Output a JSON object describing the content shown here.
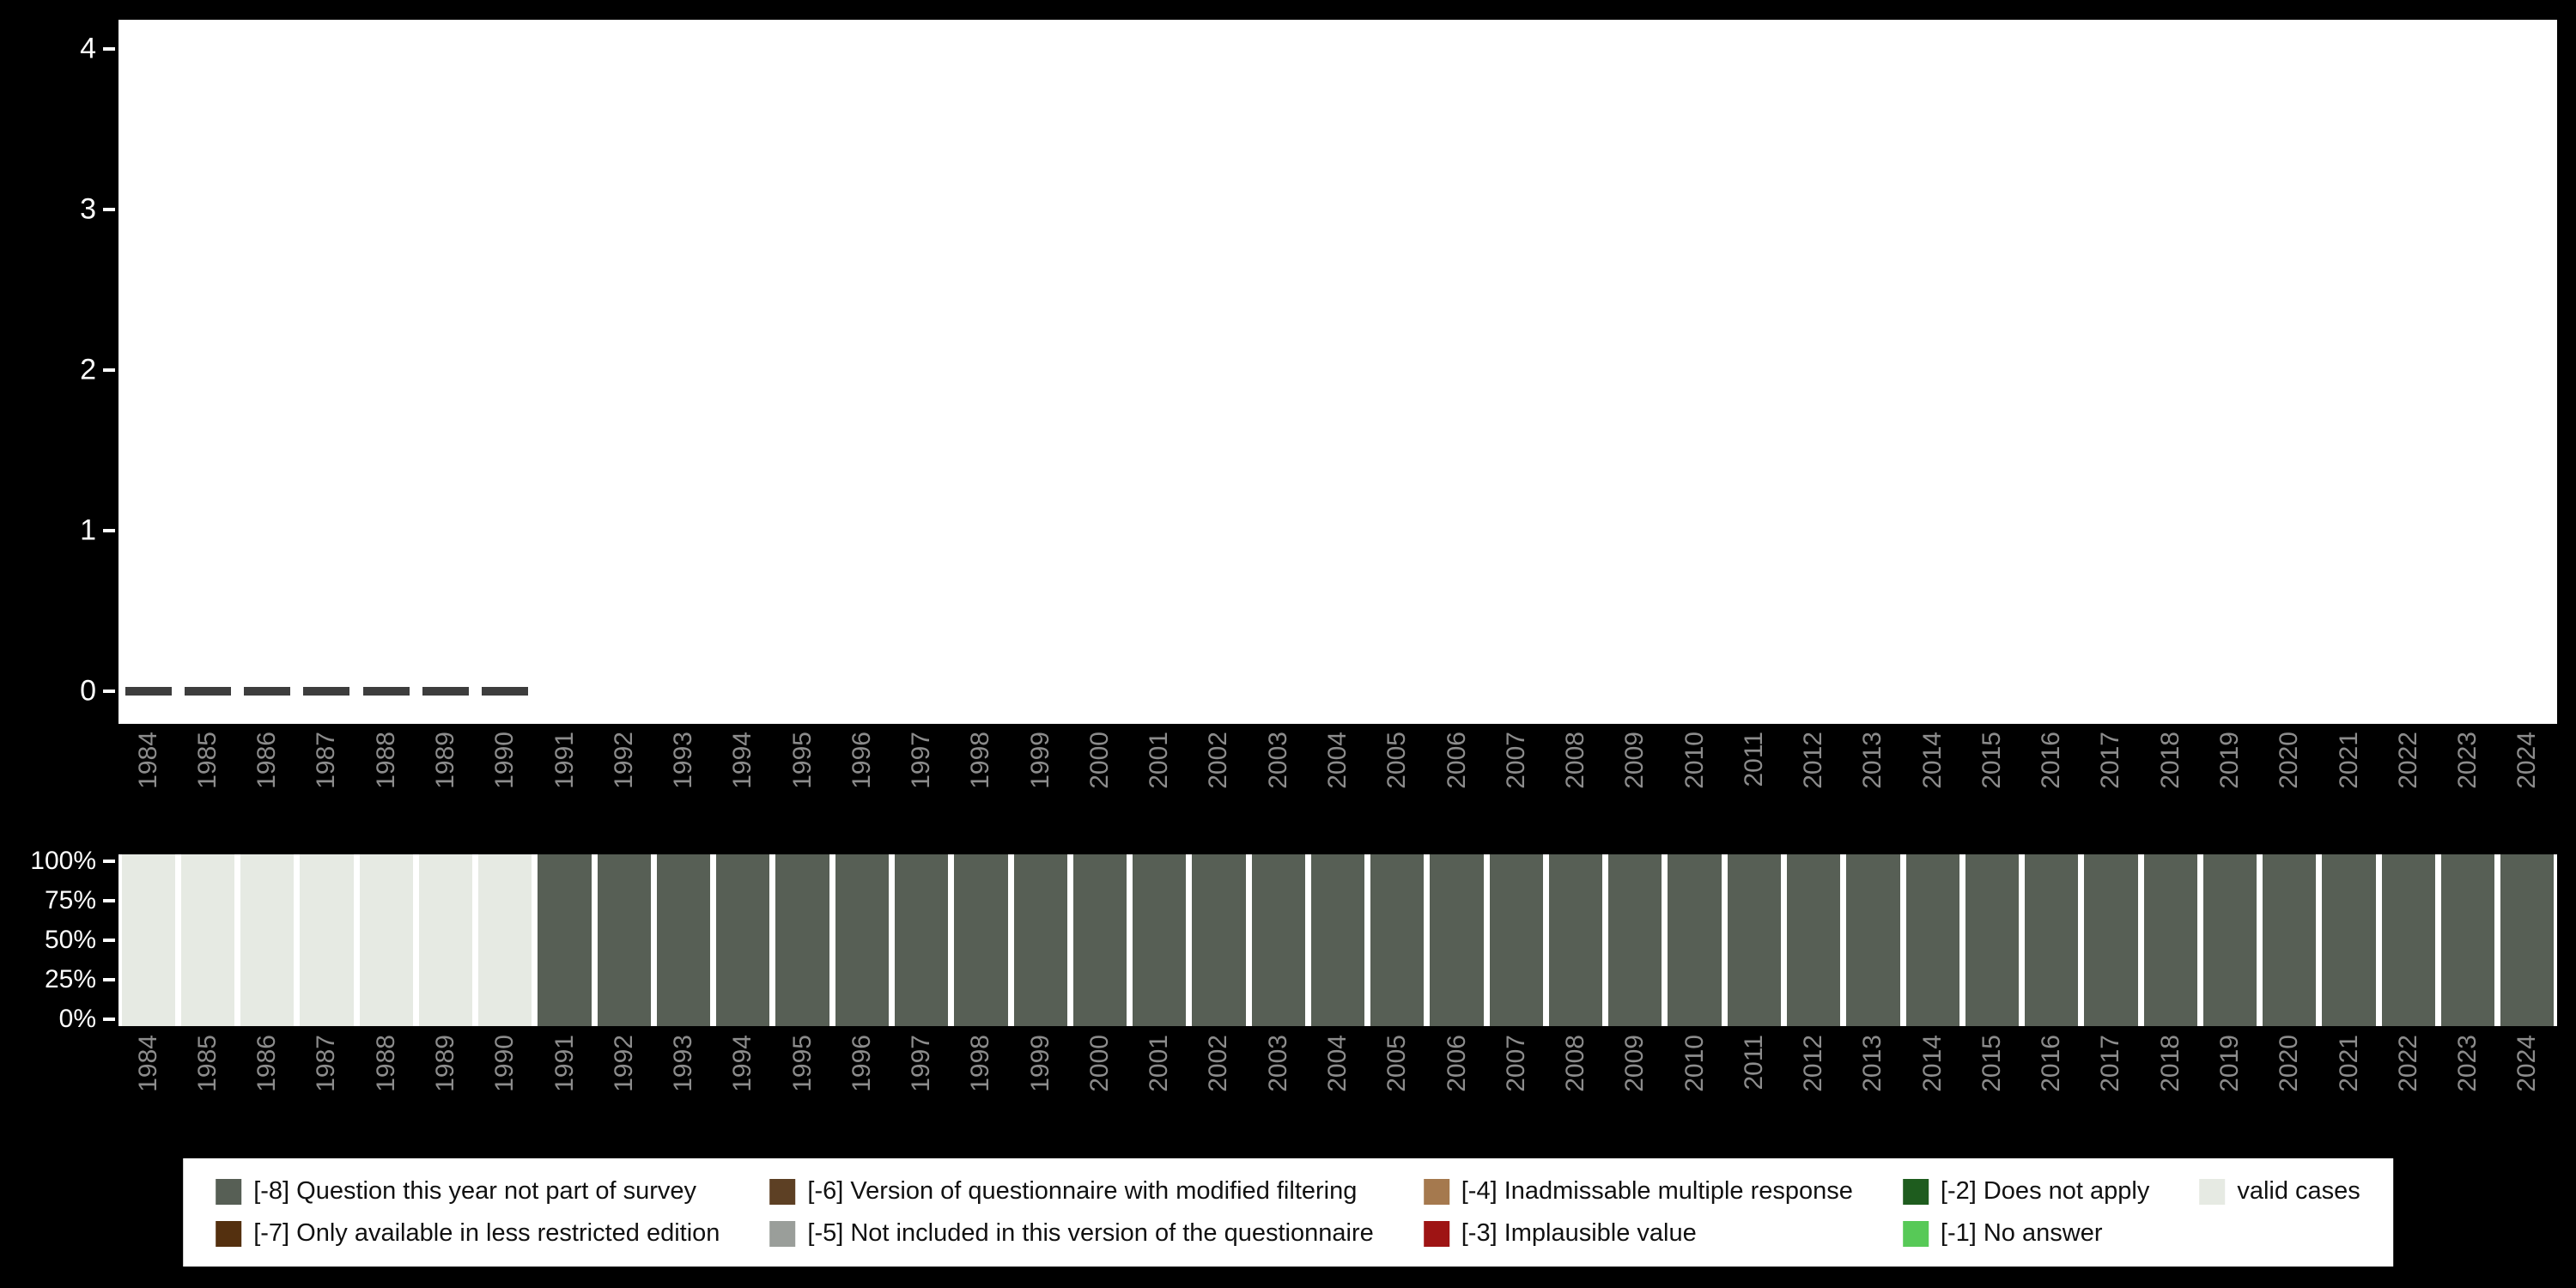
{
  "page": {
    "background_color": "#000000",
    "plot_background_color": "#ffffff",
    "axis_text_color": "#ffffff",
    "year_label_color": "#8c8c8c"
  },
  "chart_data": [
    {
      "type": "scatter",
      "title": "",
      "xlabel": "",
      "ylabel": "",
      "x": [
        "1984",
        "1985",
        "1986",
        "1987",
        "1988",
        "1989",
        "1990",
        "1991",
        "1992",
        "1993",
        "1994",
        "1995",
        "1996",
        "1997",
        "1998",
        "1999",
        "2000",
        "2001",
        "2002",
        "2003",
        "2004",
        "2005",
        "2006",
        "2007",
        "2008",
        "2009",
        "2010",
        "2011",
        "2012",
        "2013",
        "2014",
        "2015",
        "2016",
        "2017",
        "2018",
        "2019",
        "2020",
        "2021",
        "2022",
        "2023",
        "2024"
      ],
      "ylim": [
        0,
        4
      ],
      "yticks": [
        4,
        3,
        2,
        1,
        0
      ],
      "grid": false,
      "marker": "dash",
      "marker_color": "#3d3d3d",
      "values": [
        0,
        0,
        0,
        0,
        0,
        0,
        0,
        null,
        null,
        null,
        null,
        null,
        null,
        null,
        null,
        null,
        null,
        null,
        null,
        null,
        null,
        null,
        null,
        null,
        null,
        null,
        null,
        null,
        null,
        null,
        null,
        null,
        null,
        null,
        null,
        null,
        null,
        null,
        null,
        null,
        null
      ]
    },
    {
      "type": "bar",
      "subtype": "stacked-100-percent",
      "title": "",
      "xlabel": "",
      "ylabel": "",
      "categories": [
        "1984",
        "1985",
        "1986",
        "1987",
        "1988",
        "1989",
        "1990",
        "1991",
        "1992",
        "1993",
        "1994",
        "1995",
        "1996",
        "1997",
        "1998",
        "1999",
        "2000",
        "2001",
        "2002",
        "2003",
        "2004",
        "2005",
        "2006",
        "2007",
        "2008",
        "2009",
        "2010",
        "2011",
        "2012",
        "2013",
        "2014",
        "2015",
        "2016",
        "2017",
        "2018",
        "2019",
        "2020",
        "2021",
        "2022",
        "2023",
        "2024"
      ],
      "yticks": [
        "100%",
        "75%",
        "50%",
        "25%",
        "0%"
      ],
      "ylim": [
        0,
        100
      ],
      "series": [
        {
          "name": "valid cases",
          "color": "#e6eae3",
          "values": [
            100,
            100,
            100,
            100,
            100,
            100,
            100,
            0,
            0,
            0,
            0,
            0,
            0,
            0,
            0,
            0,
            0,
            0,
            0,
            0,
            0,
            0,
            0,
            0,
            0,
            0,
            0,
            0,
            0,
            0,
            0,
            0,
            0,
            0,
            0,
            0,
            0,
            0,
            0,
            0,
            0
          ]
        },
        {
          "name": "[-8] Question this year not part of survey",
          "color": "#575f55",
          "values": [
            0,
            0,
            0,
            0,
            0,
            0,
            0,
            100,
            100,
            100,
            100,
            100,
            100,
            100,
            100,
            100,
            100,
            100,
            100,
            100,
            100,
            100,
            100,
            100,
            100,
            100,
            100,
            100,
            100,
            100,
            100,
            100,
            100,
            100,
            100,
            100,
            100,
            100,
            100,
            100,
            100
          ]
        }
      ]
    }
  ],
  "legend": {
    "items": [
      {
        "label": "[-8] Question this year not part of survey",
        "color": "#575f55"
      },
      {
        "label": "[-7] Only available in less restricted edition",
        "color": "#54300f"
      },
      {
        "label": "[-6] Version of questionnaire with modified filtering",
        "color": "#5d4024"
      },
      {
        "label": "[-5] Not included in this version of the questionnaire",
        "color": "#9a9e9a"
      },
      {
        "label": "[-4] Inadmissable multiple response",
        "color": "#a5794e"
      },
      {
        "label": "[-3] Implausible value",
        "color": "#9e1414"
      },
      {
        "label": "[-2] Does not apply",
        "color": "#1e5c1e"
      },
      {
        "label": "[-1] No answer",
        "color": "#57c957"
      },
      {
        "label": "valid cases",
        "color": "#e6eae3"
      }
    ]
  }
}
